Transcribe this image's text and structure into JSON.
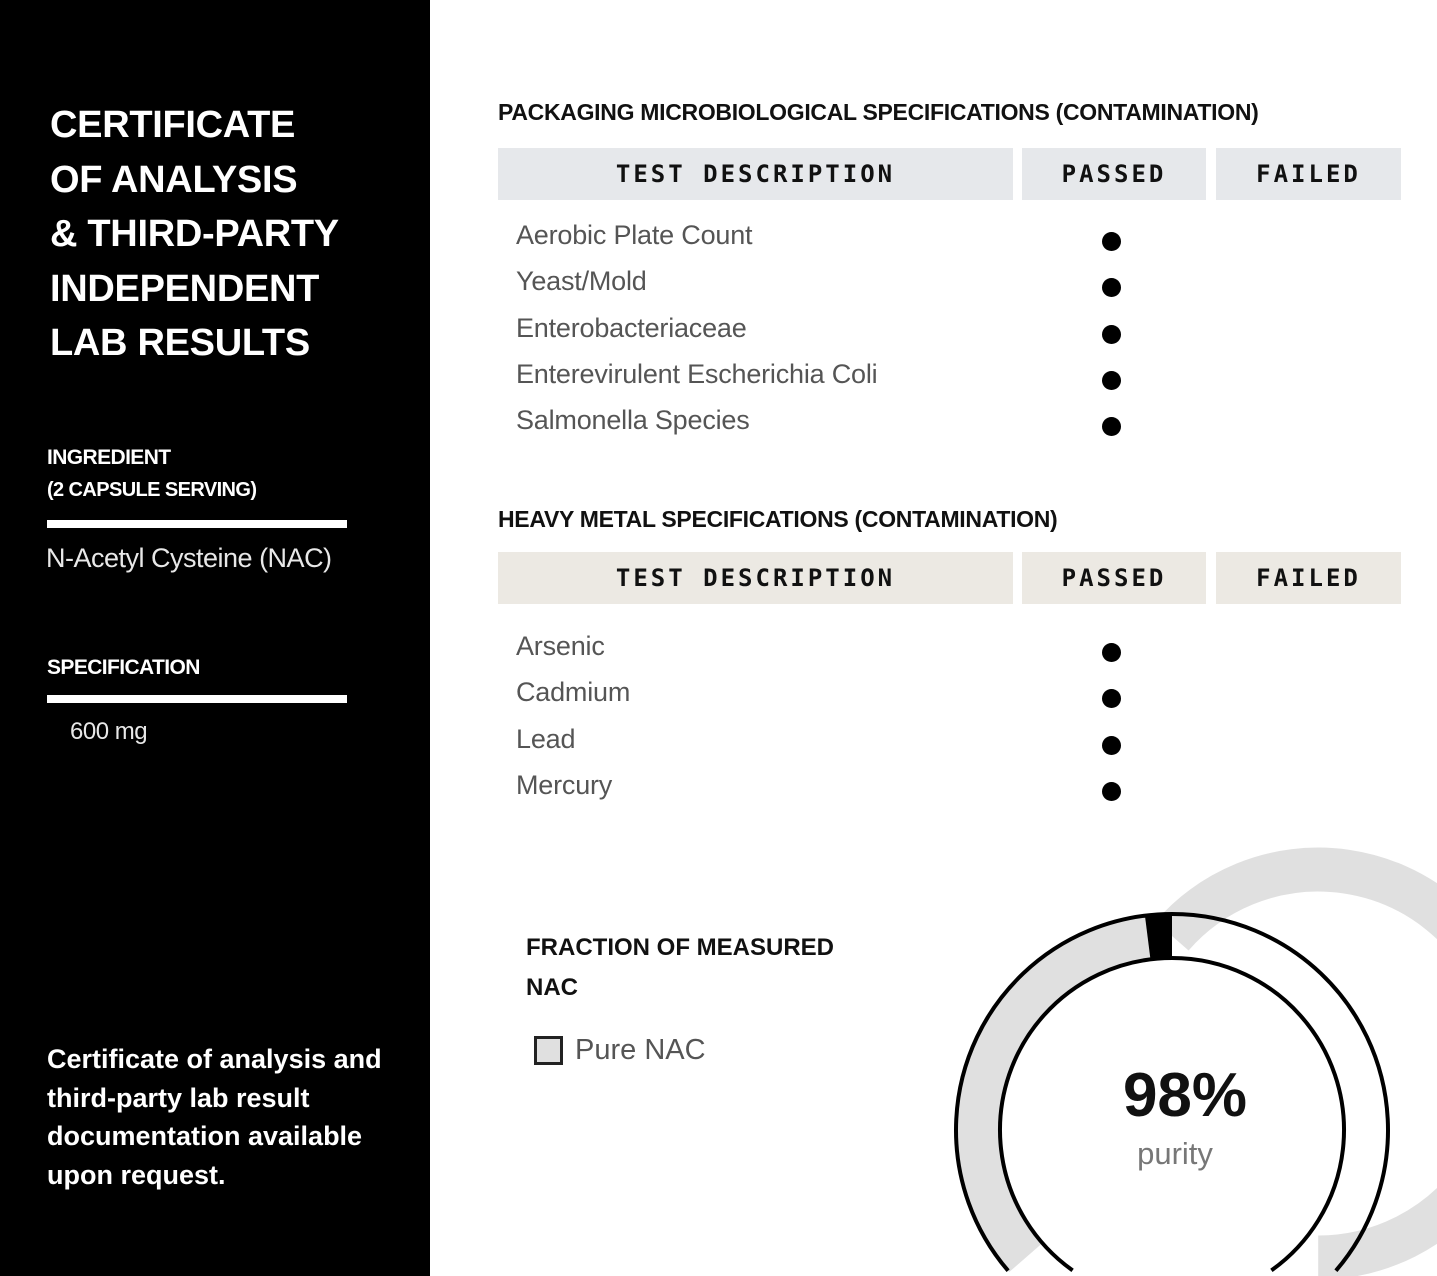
{
  "sidebar": {
    "title": [
      "CERTIFICATE",
      "OF ANALYSIS",
      "& THIRD-PARTY",
      "INDEPENDENT",
      "LAB RESULTS"
    ],
    "ingredient_label": [
      "INGREDIENT",
      "(2 CAPSULE SERVING)"
    ],
    "ingredient_value": "N-Acetyl Cysteine (NAC)",
    "specification_label": "SPECIFICATION",
    "specification_value": "600 mg",
    "note": "Certificate of analysis and third-party lab result documentation available upon request."
  },
  "micro": {
    "title": "PACKAGING MICROBIOLOGICAL SPECIFICATIONS (CONTAMINATION)",
    "headers": [
      "TEST DESCRIPTION",
      "PASSED",
      "FAILED"
    ],
    "header_color": "#e6e8eb",
    "rows": [
      {
        "test": "Aerobic Plate Count",
        "passed": true
      },
      {
        "test": "Yeast/Mold",
        "passed": true
      },
      {
        "test": "Enterobacteriaceae",
        "passed": true
      },
      {
        "test": "Enterevirulent Escherichia Coli",
        "passed": true
      },
      {
        "test": "Salmonella Species",
        "passed": true
      }
    ]
  },
  "metal": {
    "title": "HEAVY METAL SPECIFICATIONS (CONTAMINATION)",
    "headers": [
      "TEST DESCRIPTION",
      "PASSED",
      "FAILED"
    ],
    "header_color": "#ece9e3",
    "rows": [
      {
        "test": "Arsenic",
        "passed": true
      },
      {
        "test": "Cadmium",
        "passed": true
      },
      {
        "test": "Lead",
        "passed": true
      },
      {
        "test": "Mercury",
        "passed": true
      }
    ]
  },
  "fraction": {
    "title": [
      "FRACTION OF MEASURED",
      "NAC"
    ],
    "legend": "Pure NAC",
    "percent_label": "98%",
    "sub_label": "purity"
  },
  "chart_data": {
    "type": "pie",
    "style": "donut",
    "slices": [
      {
        "name": "Pure NAC",
        "value": 98,
        "color": "#e0e0e0"
      },
      {
        "value": 2,
        "color": "#000000"
      }
    ]
  }
}
